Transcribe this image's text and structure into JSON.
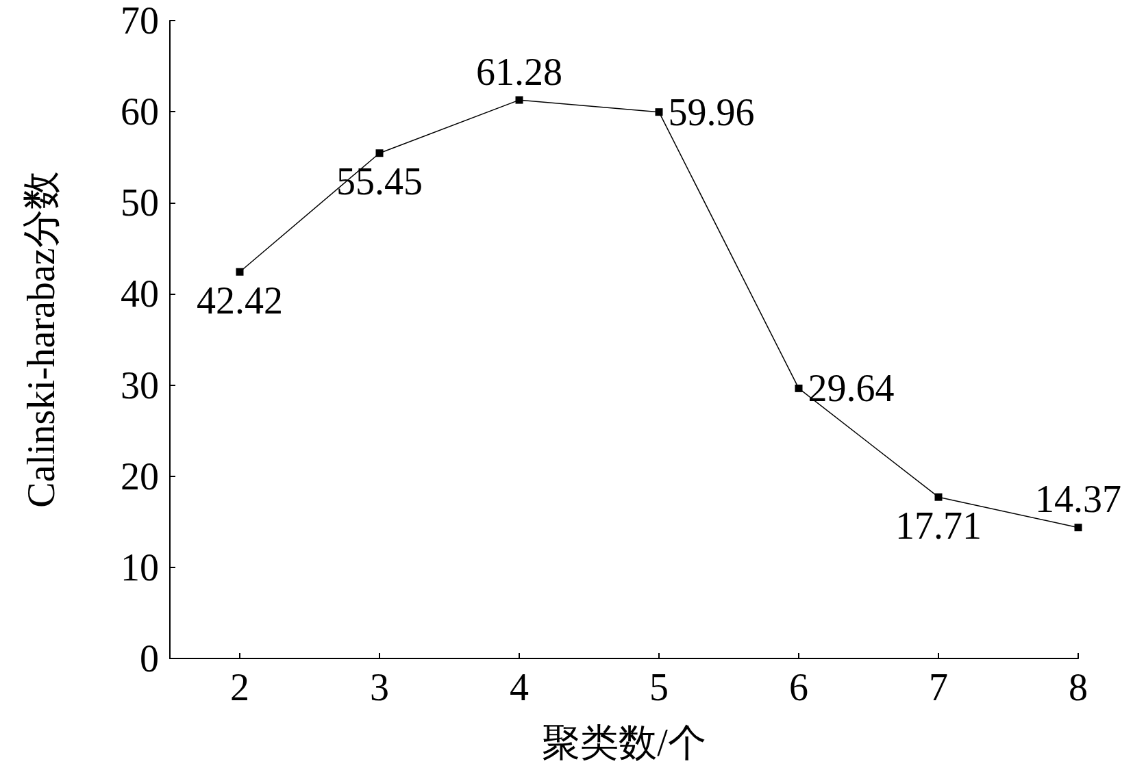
{
  "chart_data": {
    "type": "line",
    "xlabel": "聚类数/个",
    "ylabel": "Calinski-harabaz分数",
    "x": [
      2,
      3,
      4,
      5,
      6,
      7,
      8
    ],
    "series": [
      {
        "color": "#000000",
        "values": [
          42.42,
          55.45,
          61.28,
          59.96,
          29.64,
          17.71,
          14.37
        ]
      }
    ],
    "xlim": [
      1.5,
      8
    ],
    "xticks": [
      2,
      3,
      4,
      5,
      6,
      7,
      8
    ],
    "ylim": [
      0,
      70
    ],
    "yticks": [
      0,
      10,
      20,
      30,
      40,
      50,
      60,
      70
    ],
    "data_labels": true,
    "marker": "square",
    "line_style": "solid",
    "grid": false
  }
}
